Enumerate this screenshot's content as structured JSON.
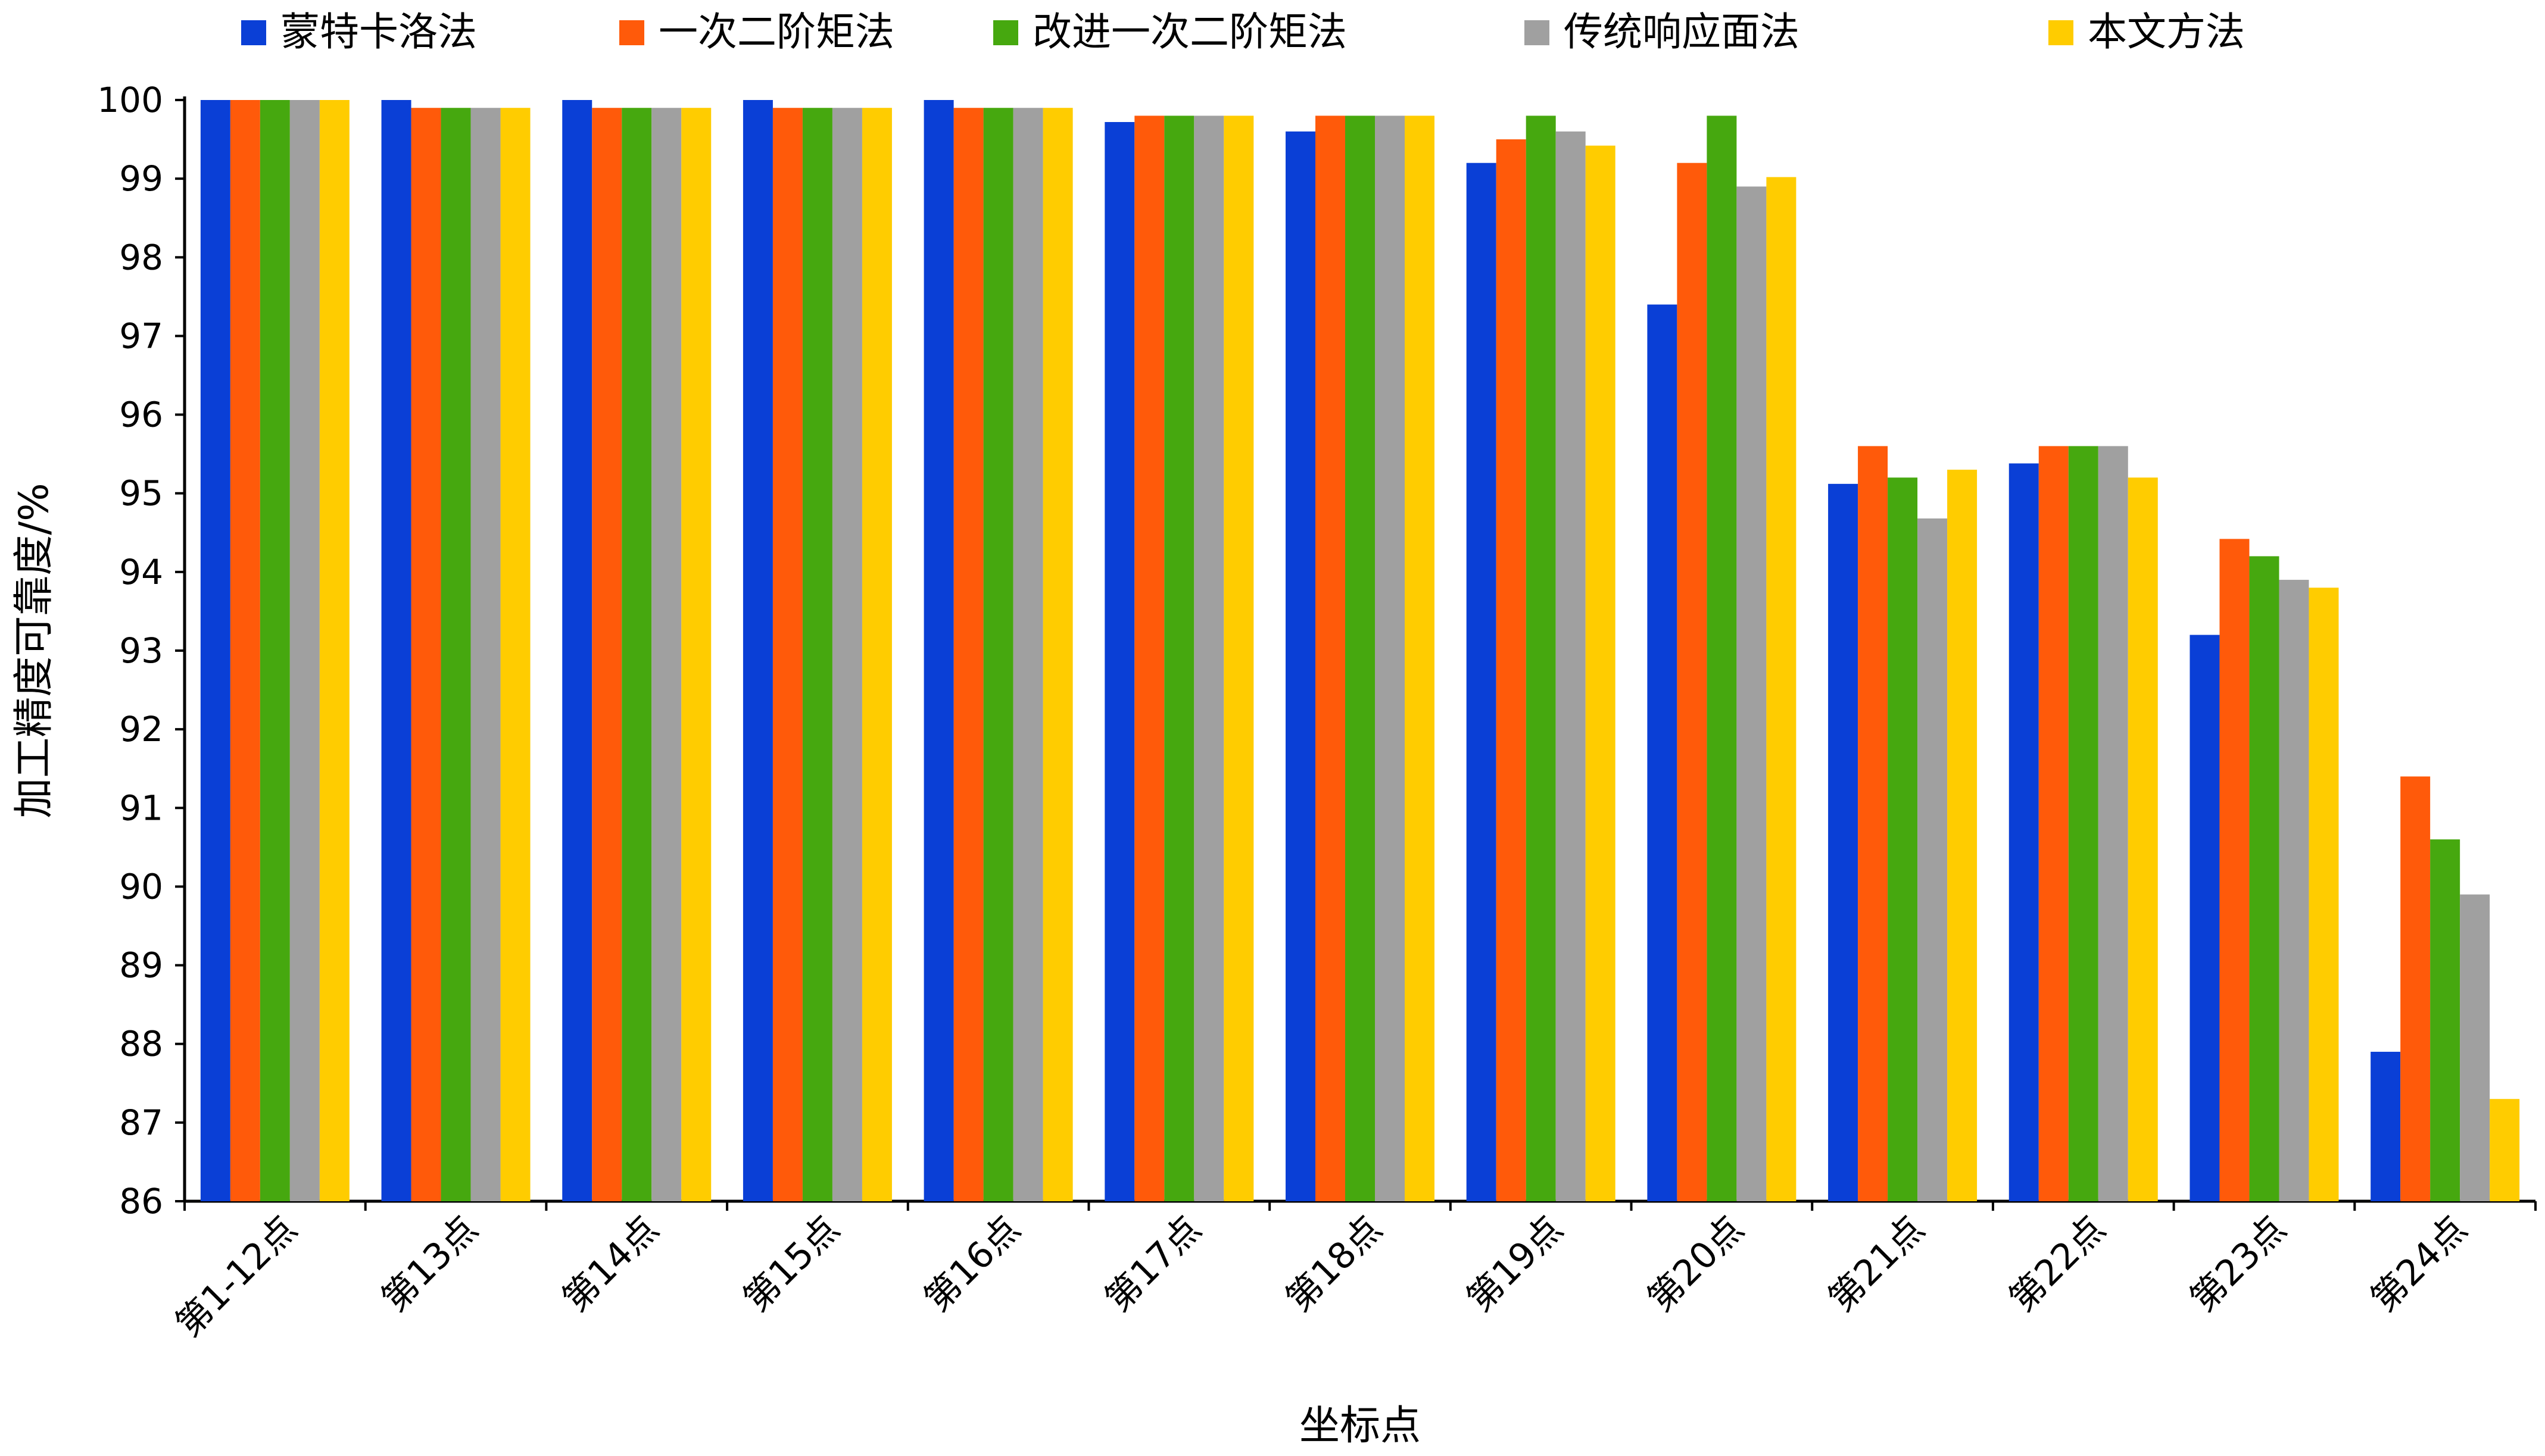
{
  "chart_data": {
    "type": "bar",
    "title": "",
    "xlabel": "坐标点",
    "ylabel": "加工精度可靠度/%",
    "ylim": [
      86,
      100
    ],
    "yticks": [
      86,
      87,
      88,
      89,
      90,
      91,
      92,
      93,
      94,
      95,
      96,
      97,
      98,
      99,
      100
    ],
    "grid": false,
    "legend_position": "top",
    "categories": [
      "第1-12点",
      "第13点",
      "第14点",
      "第15点",
      "第16点",
      "第17点",
      "第18点",
      "第19点",
      "第20点",
      "第21点",
      "第22点",
      "第23点",
      "第24点"
    ],
    "series": [
      {
        "name": "蒙特卡洛法",
        "color": "#0a3fd6",
        "values": [
          100,
          100,
          100,
          100,
          100,
          99.72,
          99.6,
          99.2,
          97.4,
          95.12,
          95.38,
          93.2,
          87.9
        ]
      },
      {
        "name": "一次二阶矩法",
        "color": "#ff5a0a",
        "values": [
          100,
          99.9,
          99.9,
          99.9,
          99.9,
          99.8,
          99.8,
          99.5,
          99.2,
          95.6,
          95.6,
          94.42,
          91.4
        ]
      },
      {
        "name": "改进一次二阶矩法",
        "color": "#46a80f",
        "values": [
          100,
          99.9,
          99.9,
          99.9,
          99.9,
          99.8,
          99.8,
          99.8,
          99.8,
          95.2,
          95.6,
          94.2,
          90.6
        ]
      },
      {
        "name": "传统响应面法",
        "color": "#a0a0a0",
        "values": [
          100,
          99.9,
          99.9,
          99.9,
          99.9,
          99.8,
          99.8,
          99.6,
          98.9,
          94.68,
          95.6,
          93.9,
          89.9
        ]
      },
      {
        "name": "本文方法",
        "color": "#ffcc00",
        "values": [
          100,
          99.9,
          99.9,
          99.9,
          99.9,
          99.8,
          99.8,
          99.42,
          99.02,
          95.3,
          95.2,
          93.8,
          87.3
        ]
      }
    ]
  }
}
